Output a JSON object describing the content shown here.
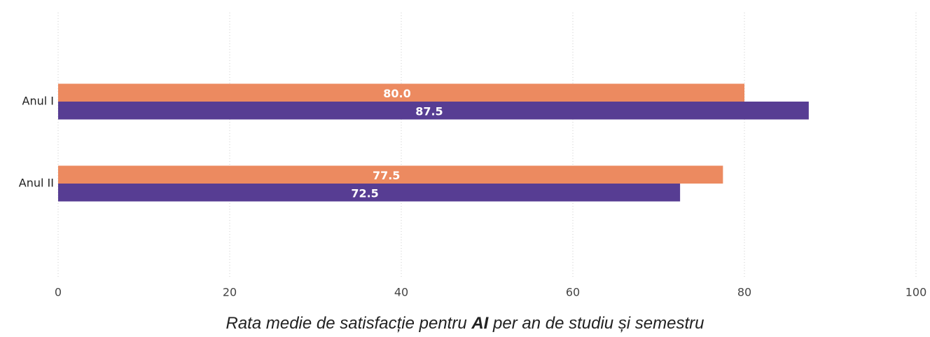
{
  "chart_data": {
    "type": "bar",
    "orientation": "horizontal",
    "categories": [
      "Anul I",
      "Anul II"
    ],
    "series": [
      {
        "color": "#ec8a60",
        "values": [
          80,
          77.5
        ],
        "value_labels": [
          "80.0",
          "77.5"
        ]
      },
      {
        "color": "#573d93",
        "values": [
          87.5,
          72.5
        ],
        "value_labels": [
          "87.5",
          "72.5"
        ]
      }
    ],
    "xlim": [
      0,
      100
    ],
    "xticks": [
      0,
      20,
      40,
      60,
      80,
      100
    ],
    "grid": true,
    "caption": [
      "Rata medie de satisfacție pentru ",
      "AI",
      " per an de studiu și semestru"
    ]
  }
}
